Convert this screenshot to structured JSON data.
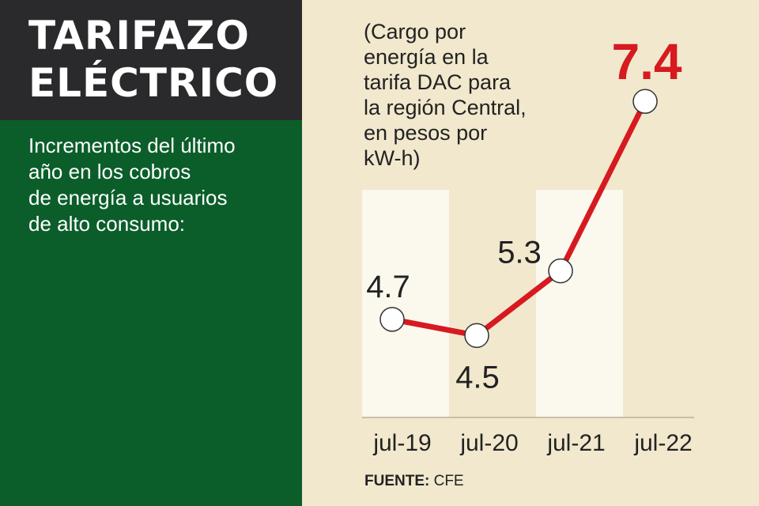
{
  "headline": {
    "line1": "TARIFAZO",
    "line2": "ELÉCTRICO"
  },
  "intro_lines": [
    "Incrementos del último",
    "año en los cobros",
    "de energía a usuarios",
    "de alto consumo:"
  ],
  "note_lines": [
    "(Cargo por",
    "energía en la",
    "tarifa DAC para",
    "la región Central,",
    "en pesos por",
    "kW-h)"
  ],
  "source": {
    "label": "FUENTE:",
    "value": "CFE"
  },
  "colors": {
    "title_bg": "#2a2a2d",
    "panel_bg": "#0b5e2a",
    "chart_bg": "#f1e8cd",
    "column_bg": "#fbf8ee",
    "line": "#d71920",
    "highlight_label": "#d71920"
  },
  "chart_data": {
    "type": "line",
    "categories": [
      "jul-19",
      "jul-20",
      "jul-21",
      "jul-22"
    ],
    "values": [
      4.7,
      4.5,
      5.3,
      7.4
    ],
    "value_labels": [
      "4.7",
      "4.5",
      "5.3",
      "7.4"
    ],
    "highlight_index": 3,
    "ylim": [
      4.2,
      7.5
    ],
    "grid": false,
    "legend": "none"
  }
}
